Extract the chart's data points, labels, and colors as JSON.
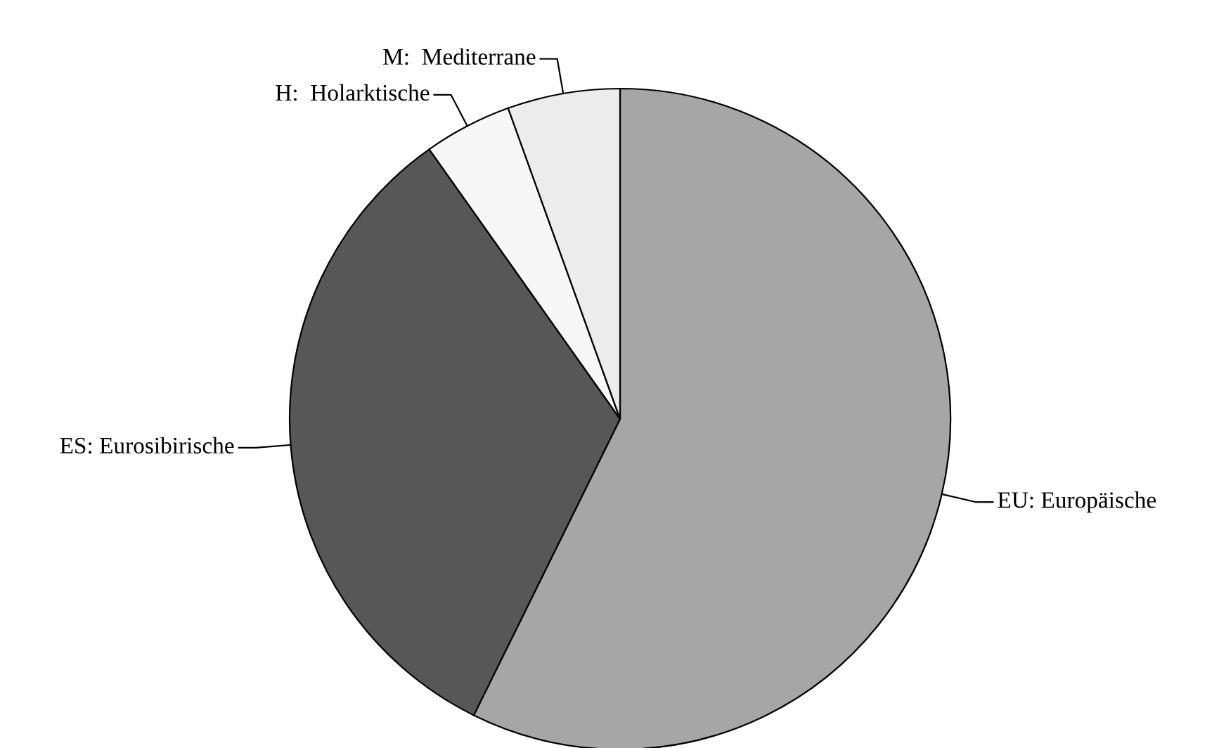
{
  "chart_data": {
    "type": "pie",
    "categories": [
      "EU: Europäische",
      "ES: Eurosibirische",
      "H:  Holarktische",
      "M:  Mediterrane"
    ],
    "values": [
      57.3,
      32.9,
      4.3,
      5.5
    ],
    "colors": [
      "#a6a6a6",
      "#575757",
      "#f7f7f7",
      "#ececec"
    ],
    "legend": false
  }
}
